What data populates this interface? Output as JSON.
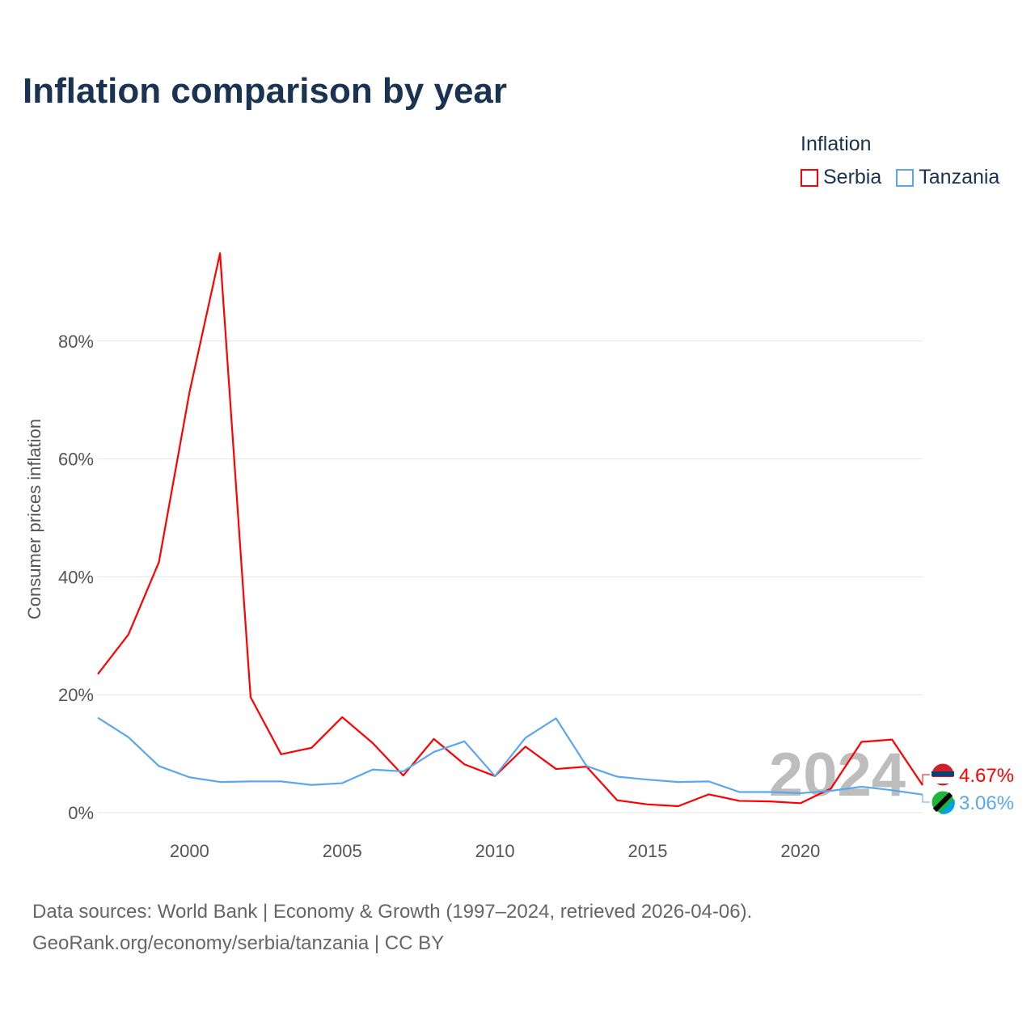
{
  "chart_data": {
    "type": "line",
    "title": "Inflation comparison by year",
    "xlabel": "",
    "ylabel": "Consumer prices inflation",
    "legend_title": "Inflation",
    "legend_position": "top-right",
    "xlim": [
      1997,
      2024
    ],
    "ylim": [
      0,
      100
    ],
    "x_ticks": [
      2000,
      2005,
      2010,
      2015,
      2020
    ],
    "y_ticks": [
      0,
      20,
      40,
      60,
      80
    ],
    "y_tick_labels": [
      "0%",
      "20%",
      "40%",
      "60%",
      "80%"
    ],
    "grid": true,
    "year_watermark": "2024",
    "x": [
      1997,
      1998,
      1999,
      2000,
      2001,
      2002,
      2003,
      2004,
      2005,
      2006,
      2007,
      2008,
      2009,
      2010,
      2011,
      2012,
      2013,
      2014,
      2015,
      2016,
      2017,
      2018,
      2019,
      2020,
      2021,
      2022,
      2023,
      2024
    ],
    "series": [
      {
        "name": "Serbia",
        "color": "#ff0000",
        "end_label": "4.67%",
        "values": [
          23.5,
          30.2,
          42.5,
          71.3,
          94.9,
          19.6,
          9.9,
          11.0,
          16.2,
          11.8,
          6.3,
          12.5,
          8.2,
          6.2,
          11.2,
          7.4,
          7.8,
          2.1,
          1.4,
          1.1,
          3.1,
          2.0,
          1.9,
          1.6,
          4.1,
          12.0,
          12.4,
          4.67
        ]
      },
      {
        "name": "Tanzania",
        "color": "#5aa7f0",
        "end_label": "3.06%",
        "values": [
          16.1,
          12.8,
          7.9,
          6.0,
          5.2,
          5.3,
          5.3,
          4.7,
          5.0,
          7.3,
          7.0,
          10.3,
          12.1,
          6.2,
          12.7,
          16.0,
          7.9,
          6.1,
          5.6,
          5.2,
          5.3,
          3.5,
          3.5,
          3.3,
          3.7,
          4.4,
          3.8,
          3.06
        ]
      }
    ]
  },
  "footer": {
    "line1": "Data sources: World Bank | Economy & Growth (1997–2024, retrieved 2026-04-06).",
    "line2": "GeoRank.org/economy/serbia/tanzania | CC BY"
  }
}
